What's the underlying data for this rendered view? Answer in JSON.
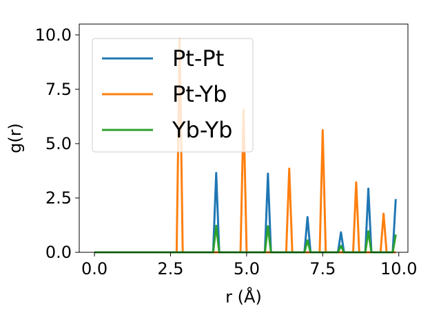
{
  "chart_data": {
    "type": "line",
    "title": "",
    "xlabel": "r (Å)",
    "ylabel": "g(r)",
    "xlim": [
      -0.5,
      10.3
    ],
    "ylim": [
      0,
      10.5
    ],
    "xticks": [
      0.0,
      2.5,
      5.0,
      7.5,
      10.0
    ],
    "xtick_labels": [
      "0.0",
      "2.5",
      "5.0",
      "7.5",
      "10.0"
    ],
    "yticks": [
      0.0,
      2.5,
      5.0,
      7.5,
      10.0
    ],
    "ytick_labels": [
      "0.0",
      "2.5",
      "5.0",
      "7.5",
      "10.0"
    ],
    "grid": false,
    "legend_position": "top-left",
    "series": [
      {
        "name": "Pt-Pt",
        "color": "#1f77b4",
        "x": [
          0.0,
          3.9,
          4.0,
          4.1,
          5.6,
          5.7,
          5.8,
          6.9,
          7.0,
          7.1,
          8.0,
          8.1,
          8.2,
          8.9,
          9.0,
          9.1,
          9.8,
          9.9
        ],
        "y": [
          0.0,
          0.0,
          3.65,
          0.0,
          0.0,
          3.62,
          0.0,
          0.0,
          1.62,
          0.0,
          0.0,
          0.92,
          0.0,
          0.0,
          2.93,
          0.0,
          0.0,
          2.45
        ]
      },
      {
        "name": "Pt-Yb",
        "color": "#ff7f0e",
        "x": [
          0.0,
          2.7,
          2.8,
          2.9,
          4.8,
          4.9,
          5.0,
          6.3,
          6.4,
          6.5,
          7.4,
          7.5,
          7.6,
          8.5,
          8.6,
          8.7,
          9.4,
          9.5,
          9.6,
          9.9
        ],
        "y": [
          0.0,
          0.0,
          9.82,
          0.0,
          0.0,
          6.55,
          0.0,
          0.0,
          3.85,
          0.0,
          0.0,
          5.62,
          0.0,
          0.0,
          3.22,
          0.0,
          0.0,
          1.78,
          0.0,
          0.0
        ]
      },
      {
        "name": "Yb-Yb",
        "color": "#2ca02c",
        "x": [
          0.0,
          3.9,
          4.0,
          4.1,
          5.6,
          5.7,
          5.8,
          6.9,
          7.0,
          7.1,
          8.0,
          8.1,
          8.2,
          8.9,
          9.0,
          9.1,
          9.8,
          9.9
        ],
        "y": [
          0.0,
          0.0,
          1.22,
          0.0,
          0.0,
          1.2,
          0.0,
          0.0,
          0.55,
          0.0,
          0.0,
          0.3,
          0.0,
          0.0,
          0.97,
          0.0,
          0.0,
          0.82
        ]
      }
    ]
  }
}
